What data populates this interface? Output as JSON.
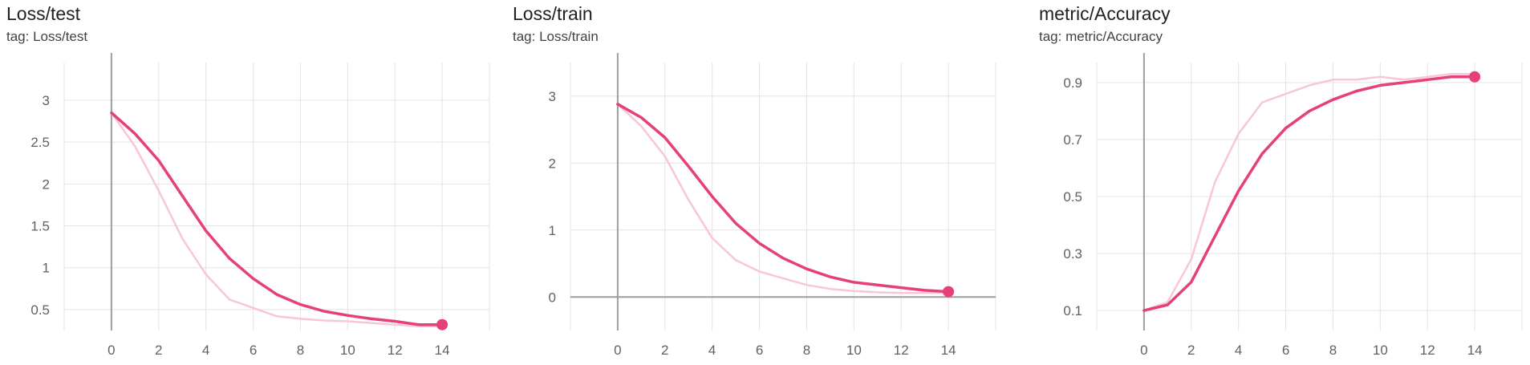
{
  "theme": {
    "line_color": "#e5407a",
    "raw_color": "#f7c6d8",
    "grid_color": "#e4e4e4",
    "axis_color": "#9e9e9e"
  },
  "chart_data": [
    {
      "type": "line",
      "title": "Loss/test",
      "subtitle": "tag: Loss/test",
      "xlabel": "",
      "ylabel": "",
      "xlim": [
        -2,
        16
      ],
      "ylim": [
        0.25,
        3.45
      ],
      "xticks": [
        0,
        2,
        4,
        6,
        8,
        10,
        12,
        14
      ],
      "yticks": [
        0.5,
        1,
        1.5,
        2,
        2.5,
        3
      ],
      "grid": true,
      "series": [
        {
          "role": "raw",
          "x": [
            0,
            1,
            2,
            3,
            4,
            5,
            6,
            7,
            8,
            9,
            10,
            11,
            12,
            13,
            14
          ],
          "y": [
            2.85,
            2.45,
            1.92,
            1.35,
            0.92,
            0.62,
            0.52,
            0.42,
            0.39,
            0.37,
            0.36,
            0.34,
            0.32,
            0.3,
            0.3
          ]
        },
        {
          "role": "smoothed",
          "x": [
            0,
            1,
            2,
            3,
            4,
            5,
            6,
            7,
            8,
            9,
            10,
            11,
            12,
            13,
            14
          ],
          "y": [
            2.85,
            2.6,
            2.28,
            1.86,
            1.44,
            1.11,
            0.87,
            0.68,
            0.56,
            0.48,
            0.43,
            0.39,
            0.36,
            0.32,
            0.32
          ]
        }
      ]
    },
    {
      "type": "line",
      "title": "Loss/train",
      "subtitle": "tag: Loss/train",
      "xlabel": "",
      "ylabel": "",
      "xlim": [
        -2,
        16
      ],
      "ylim": [
        -0.5,
        3.5
      ],
      "xticks": [
        0,
        2,
        4,
        6,
        8,
        10,
        12,
        14
      ],
      "yticks": [
        0,
        1,
        2,
        3
      ],
      "grid": true,
      "series": [
        {
          "role": "raw",
          "x": [
            0,
            1,
            2,
            3,
            4,
            5,
            6,
            7,
            8,
            9,
            10,
            11,
            12,
            13,
            14
          ],
          "y": [
            2.88,
            2.55,
            2.1,
            1.45,
            0.88,
            0.55,
            0.38,
            0.28,
            0.18,
            0.12,
            0.09,
            0.07,
            0.06,
            0.06,
            0.06
          ]
        },
        {
          "role": "smoothed",
          "x": [
            0,
            1,
            2,
            3,
            4,
            5,
            6,
            7,
            8,
            9,
            10,
            11,
            12,
            13,
            14
          ],
          "y": [
            2.88,
            2.68,
            2.38,
            1.95,
            1.5,
            1.1,
            0.8,
            0.58,
            0.42,
            0.3,
            0.22,
            0.18,
            0.14,
            0.1,
            0.08
          ]
        }
      ]
    },
    {
      "type": "line",
      "title": "metric/Accuracy",
      "subtitle": "tag: metric/Accuracy",
      "xlabel": "",
      "ylabel": "",
      "xlim": [
        -2,
        16
      ],
      "ylim": [
        0.03,
        0.97
      ],
      "xticks": [
        0,
        2,
        4,
        6,
        8,
        10,
        12,
        14
      ],
      "yticks": [
        0.1,
        0.3,
        0.5,
        0.7,
        0.9
      ],
      "grid": true,
      "series": [
        {
          "role": "raw",
          "x": [
            0,
            1,
            2,
            3,
            4,
            5,
            6,
            7,
            8,
            9,
            10,
            11,
            12,
            13,
            14
          ],
          "y": [
            0.1,
            0.13,
            0.28,
            0.55,
            0.72,
            0.83,
            0.86,
            0.89,
            0.91,
            0.91,
            0.92,
            0.91,
            0.92,
            0.93,
            0.93
          ]
        },
        {
          "role": "smoothed",
          "x": [
            0,
            1,
            2,
            3,
            4,
            5,
            6,
            7,
            8,
            9,
            10,
            11,
            12,
            13,
            14
          ],
          "y": [
            0.1,
            0.12,
            0.2,
            0.36,
            0.52,
            0.65,
            0.74,
            0.8,
            0.84,
            0.87,
            0.89,
            0.9,
            0.91,
            0.92,
            0.92
          ]
        }
      ]
    }
  ]
}
